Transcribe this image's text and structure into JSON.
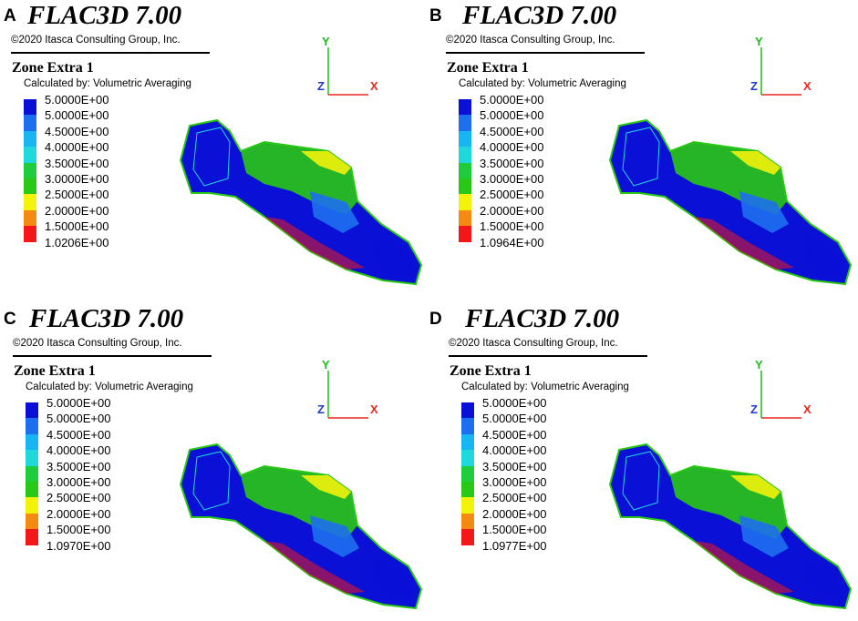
{
  "app_title": "FLAC3D 7.00",
  "copyright": "©2020 Itasca Consulting Group, Inc.",
  "legend_title": "Zone Extra 1",
  "legend_subtitle": "Calculated by: Volumetric Averaging",
  "axis_labels": {
    "x": "X",
    "y": "Y",
    "z": "Z"
  },
  "axis_colors": {
    "x": "#e8281e",
    "y": "#18c018",
    "z": "#1f3ad8"
  },
  "legend_colors": [
    "#0a10d6",
    "#1e6ff0",
    "#17b5f2",
    "#1fd8dc",
    "#1fcc3c",
    "#28c814",
    "#f2f20a",
    "#f58a12",
    "#f2181a"
  ],
  "panels": [
    {
      "letter": "A",
      "legend_values": [
        "5.0000E+00",
        "5.0000E+00",
        "4.5000E+00",
        "4.0000E+00",
        "3.5000E+00",
        "3.0000E+00",
        "2.5000E+00",
        "2.0000E+00",
        "1.5000E+00",
        "1.0206E+00"
      ]
    },
    {
      "letter": "B",
      "legend_values": [
        "5.0000E+00",
        "5.0000E+00",
        "4.5000E+00",
        "4.0000E+00",
        "3.5000E+00",
        "3.0000E+00",
        "2.5000E+00",
        "2.0000E+00",
        "1.5000E+00",
        "1.0964E+00"
      ]
    },
    {
      "letter": "C",
      "legend_values": [
        "5.0000E+00",
        "5.0000E+00",
        "4.5000E+00",
        "4.0000E+00",
        "3.5000E+00",
        "3.0000E+00",
        "2.5000E+00",
        "2.0000E+00",
        "1.5000E+00",
        "1.0970E+00"
      ]
    },
    {
      "letter": "D",
      "legend_values": [
        "5.0000E+00",
        "5.0000E+00",
        "4.5000E+00",
        "4.0000E+00",
        "3.5000E+00",
        "3.0000E+00",
        "2.5000E+00",
        "2.0000E+00",
        "1.5000E+00",
        "1.0977E+00"
      ]
    }
  ]
}
